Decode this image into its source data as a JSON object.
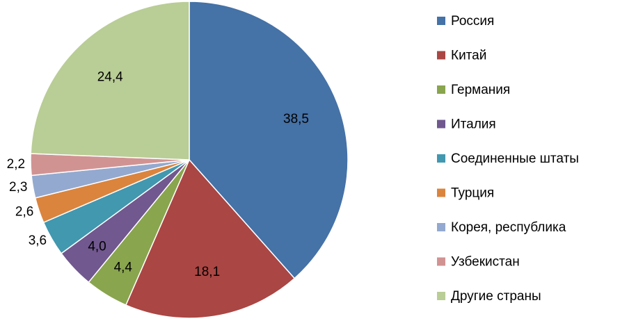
{
  "chart_data": {
    "type": "pie",
    "categories": [
      "Россия",
      "Китай",
      "Германия",
      "Италия",
      "Соединенные  штаты",
      "Турция",
      "Корея, республика",
      "Узбекистан",
      "Другие страны"
    ],
    "values": [
      38.5,
      18.1,
      4.4,
      4.0,
      3.6,
      2.6,
      2.3,
      2.2,
      24.4
    ],
    "value_labels": [
      "38,5",
      "18,1",
      "4,4",
      "4,0",
      "3,6",
      "2,6",
      "2,3",
      "2,2",
      "24,4"
    ],
    "colors": [
      "#4572a7",
      "#aa4643",
      "#89a54e",
      "#71588f",
      "#4198af",
      "#db843d",
      "#93a9cf",
      "#d19392",
      "#b9cd96"
    ],
    "legend": "right"
  }
}
